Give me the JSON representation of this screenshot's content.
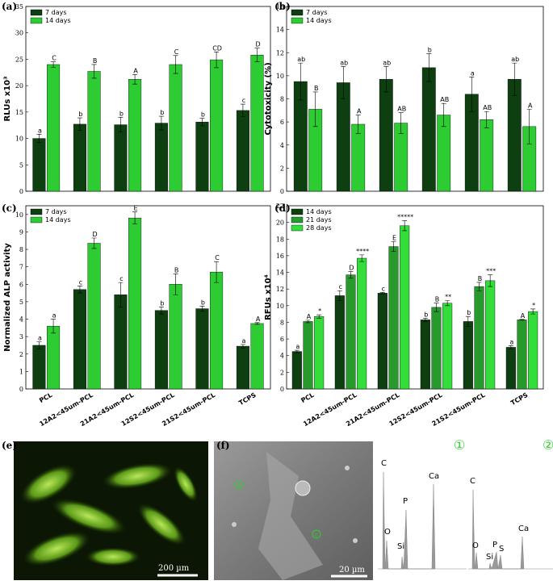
{
  "chart_data": [
    {
      "type": "bar",
      "panel_label": "(a)",
      "ylabel": "RLUs x10³",
      "ylim": [
        0,
        35
      ],
      "yticks": [
        0,
        5,
        10,
        15,
        20,
        25,
        30,
        35
      ],
      "series": [
        {
          "name": "7 days",
          "color": "#0d3f10",
          "values": [
            10.0,
            12.7,
            12.6,
            12.9,
            13.1,
            15.3
          ],
          "errors": [
            0.8,
            1.2,
            1.4,
            1.3,
            0.7,
            1.2
          ],
          "significance": [
            "a",
            "b",
            "b",
            "b",
            "b",
            "c"
          ]
        },
        {
          "name": "14 days",
          "color": "#2ecc33",
          "values": [
            24.0,
            22.7,
            21.2,
            24.0,
            24.9,
            25.8
          ],
          "errors": [
            0.5,
            1.3,
            0.9,
            1.7,
            1.5,
            1.3
          ],
          "significance": [
            "C",
            "B",
            "A",
            "C",
            "CD",
            "D"
          ]
        }
      ]
    },
    {
      "type": "bar",
      "panel_label": "(b)",
      "ylabel": "Cytotoxicity (%)",
      "ylim": [
        0,
        16
      ],
      "yticks": [
        0,
        2,
        4,
        6,
        8,
        10,
        12,
        14,
        16
      ],
      "series": [
        {
          "name": "7 days",
          "color": "#0d3f10",
          "values": [
            9.5,
            9.4,
            9.7,
            10.7,
            8.4,
            9.7
          ],
          "errors": [
            1.6,
            1.4,
            1.1,
            1.2,
            1.5,
            1.4
          ],
          "significance": [
            "ab",
            "ab",
            "ab",
            "b",
            "a",
            "ab"
          ]
        },
        {
          "name": "14 days",
          "color": "#2ecc33",
          "values": [
            7.1,
            5.8,
            5.9,
            6.6,
            6.2,
            5.6
          ],
          "errors": [
            1.5,
            0.8,
            0.9,
            1.0,
            0.7,
            1.5
          ],
          "significance": [
            "B",
            "A",
            "AB",
            "AB",
            "AB",
            "A"
          ]
        }
      ]
    },
    {
      "type": "bar",
      "panel_label": "(c)",
      "ylabel": "Normalized ALP activity",
      "ylim": [
        0,
        10.5
      ],
      "yticks": [
        0,
        1,
        2,
        3,
        4,
        5,
        6,
        7,
        8,
        9,
        10
      ],
      "categories": [
        "PCL",
        "12A2<45um-PCL",
        "21A2<45um-PCL",
        "12S2<45um-PCL",
        "21S2<45um-PCL",
        "TCPS"
      ],
      "series": [
        {
          "name": "7 days",
          "color": "#0d3f10",
          "values": [
            2.5,
            5.7,
            5.4,
            4.5,
            4.6,
            2.45
          ],
          "errors": [
            0.2,
            0.2,
            0.7,
            0.2,
            0.15,
            0.1
          ],
          "significance": [
            "a",
            "c",
            "c",
            "b",
            "b",
            "a"
          ]
        },
        {
          "name": "14 days",
          "color": "#2ecc33",
          "values": [
            3.6,
            8.35,
            9.8,
            6.0,
            6.7,
            3.75
          ],
          "errors": [
            0.4,
            0.3,
            0.35,
            0.6,
            0.6,
            0.05
          ],
          "significance": [
            "a",
            "D",
            "E",
            "B",
            "C",
            "A"
          ]
        }
      ]
    },
    {
      "type": "bar",
      "panel_label": "(d)",
      "ylabel": "RFUs x10⁴",
      "ylim": [
        0,
        22
      ],
      "yticks": [
        0,
        2,
        4,
        6,
        8,
        10,
        12,
        14,
        16,
        18,
        20,
        22
      ],
      "categories": [
        "PCL",
        "12A2<45um-PCL",
        "21A2<45um-PCL",
        "12S2<45um-PCL",
        "21S2<45um-PCL",
        "TCPS"
      ],
      "series": [
        {
          "name": "14 days",
          "color": "#0d3f10",
          "values": [
            4.5,
            11.2,
            11.5,
            8.3,
            8.1,
            5.0
          ],
          "errors": [
            0.15,
            0.6,
            0.1,
            0.2,
            0.6,
            0.2
          ],
          "significance": [
            "a",
            "c",
            "c",
            "b",
            "b",
            "a"
          ]
        },
        {
          "name": "21 days",
          "color": "#279a2c",
          "values": [
            8.1,
            13.7,
            17.1,
            9.8,
            12.3,
            8.3
          ],
          "errors": [
            0.15,
            0.4,
            0.6,
            0.5,
            0.5,
            0.05
          ],
          "significance": [
            "A",
            "D",
            "E",
            "B",
            "B",
            "A"
          ]
        },
        {
          "name": "28 days",
          "color": "#33dd3a",
          "values": [
            8.7,
            15.7,
            19.6,
            10.3,
            13.0,
            9.3
          ],
          "errors": [
            0.2,
            0.4,
            0.6,
            0.3,
            0.7,
            0.3
          ],
          "significance": [
            "*",
            "****",
            "*****",
            "**",
            "***",
            "*"
          ]
        }
      ]
    }
  ],
  "panel_e": {
    "label": "(e)",
    "scale_bar": "200 µm"
  },
  "panel_f": {
    "label": "(f)",
    "scale_bar": "20 µm",
    "spot_2": "②",
    "spot_1": "①",
    "spectrum_1": {
      "marker": "①",
      "peaks": [
        "C",
        "O",
        "Si",
        "P",
        "Ca"
      ]
    },
    "spectrum_2": {
      "marker": "②",
      "peaks": [
        "C",
        "O",
        "Si",
        "P",
        "S",
        "Ca"
      ]
    }
  }
}
